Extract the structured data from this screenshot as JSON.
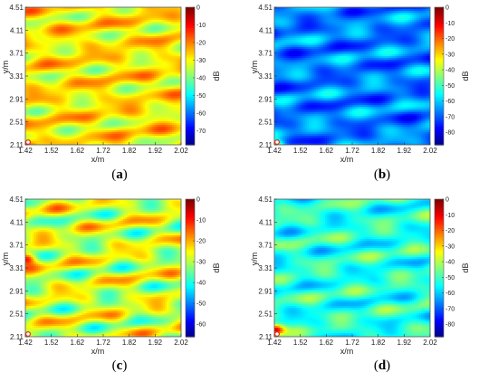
{
  "chart_data": [
    {
      "panel_label": "(a)",
      "label_letter": "a",
      "type": "heatmap",
      "xlabel": "x/m",
      "ylabel": "y/m",
      "colorbar_label": "dB",
      "x_ticks": [
        "1.42",
        "1.52",
        "1.62",
        "1.72",
        "1.82",
        "1.92",
        "2.02"
      ],
      "y_ticks": [
        "2.11",
        "2.51",
        "2.91",
        "3.31",
        "3.71",
        "4.11",
        "4.51"
      ],
      "xlim": [
        1.42,
        2.02
      ],
      "ylim": [
        2.11,
        4.51
      ],
      "colorbar_ticks": [
        "0",
        "-10",
        "-20",
        "-30",
        "-40",
        "-50",
        "-60",
        "-70"
      ],
      "clim": [
        -78,
        0
      ],
      "colormap": "jet",
      "source_marker": {
        "x": 1.42,
        "y": 2.11,
        "color": "#e0301e"
      },
      "field_mean": -28,
      "field_variation": 9,
      "hot_spot": {
        "x": 1.42,
        "y": 2.11,
        "value": -6
      }
    },
    {
      "panel_label": "(b)",
      "label_letter": "b",
      "type": "heatmap",
      "xlabel": "x/m",
      "ylabel": "y/m",
      "colorbar_label": "dB",
      "x_ticks": [
        "1.42",
        "1.52",
        "1.62",
        "1.72",
        "1.82",
        "1.92",
        "2.02"
      ],
      "y_ticks": [
        "2.11",
        "2.51",
        "2.91",
        "3.31",
        "3.71",
        "4.11",
        "4.51"
      ],
      "xlim": [
        1.42,
        2.02
      ],
      "ylim": [
        2.11,
        4.51
      ],
      "colorbar_ticks": [
        "0",
        "-10",
        "-20",
        "-30",
        "-40",
        "-50",
        "-60",
        "-70",
        "-80"
      ],
      "clim": [
        -88,
        0
      ],
      "colormap": "jet",
      "source_marker": {
        "x": 1.42,
        "y": 2.11,
        "color": "#e0301e"
      },
      "field_mean": -66,
      "field_variation": 9,
      "hot_spot": {
        "x": 1.42,
        "y": 2.11,
        "value": -30
      }
    },
    {
      "panel_label": "(c)",
      "label_letter": "c",
      "type": "heatmap",
      "xlabel": "x/m",
      "ylabel": "y/m",
      "colorbar_label": "dB",
      "x_ticks": [
        "1.42",
        "1.52",
        "1.62",
        "1.72",
        "1.82",
        "1.92",
        "2.02"
      ],
      "y_ticks": [
        "2.11",
        "2.51",
        "2.91",
        "3.31",
        "3.71",
        "4.11",
        "4.51"
      ],
      "xlim": [
        1.42,
        2.02
      ],
      "ylim": [
        2.11,
        4.51
      ],
      "colorbar_ticks": [
        "0",
        "-10",
        "-20",
        "-30",
        "-40",
        "-50",
        "-60"
      ],
      "clim": [
        -66,
        0
      ],
      "colormap": "jet",
      "source_marker": {
        "x": 1.42,
        "y": 2.11,
        "color": "#e0301e"
      },
      "field_mean": -28,
      "field_variation": 10,
      "hot_spot": {
        "x": 1.42,
        "y": 3.49,
        "value": -3
      }
    },
    {
      "panel_label": "(d)",
      "label_letter": "d",
      "type": "heatmap",
      "xlabel": "x/m",
      "ylabel": "y/m",
      "colorbar_label": "dB",
      "x_ticks": [
        "1.42",
        "1.52",
        "1.62",
        "1.72",
        "1.82",
        "1.92",
        "2.02"
      ],
      "y_ticks": [
        "2.11",
        "2.51",
        "2.91",
        "3.31",
        "3.71",
        "4.11",
        "4.51"
      ],
      "xlim": [
        1.42,
        2.02
      ],
      "ylim": [
        2.11,
        4.51
      ],
      "colorbar_ticks": [
        "0",
        "-10",
        "-20",
        "-30",
        "-40",
        "-50",
        "-60",
        "-70",
        "-80"
      ],
      "clim": [
        -88,
        0
      ],
      "colormap": "jet",
      "source_marker": {
        "x": 1.42,
        "y": 2.11,
        "color": "#e0301e"
      },
      "field_mean": -52,
      "field_variation": 9,
      "hot_spot": {
        "x": 1.42,
        "y": 2.25,
        "value": -8
      }
    }
  ]
}
